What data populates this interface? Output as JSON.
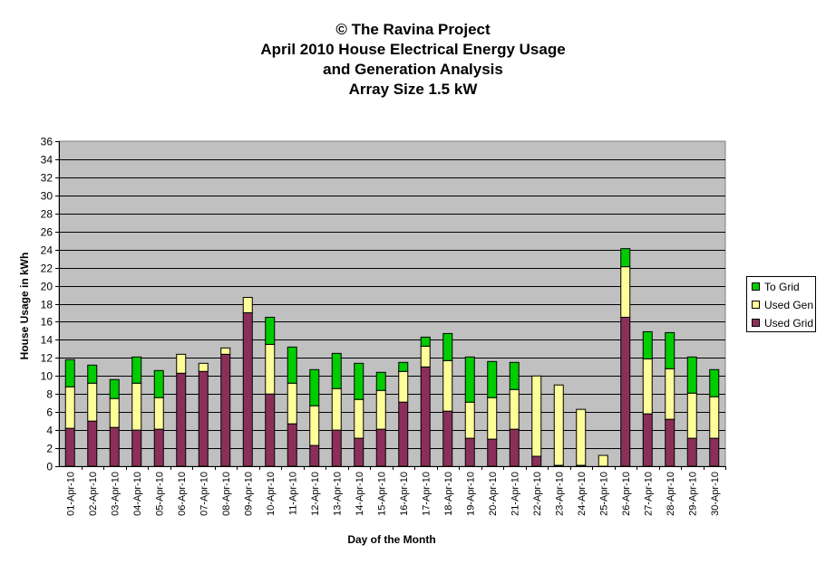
{
  "chart_data": {
    "type": "bar",
    "stacked": true,
    "title_lines": [
      "© The Ravina Project",
      "April 2010 House Electrical Energy Usage",
      "and Generation Analysis",
      "Array Size 1.5 kW"
    ],
    "xlabel": "Day of the Month",
    "ylabel": "House Usage in kWh",
    "ylim": [
      0,
      36
    ],
    "yticks": [
      0,
      2,
      4,
      6,
      8,
      10,
      12,
      14,
      16,
      18,
      20,
      22,
      24,
      26,
      28,
      30,
      32,
      34,
      36
    ],
    "grid": true,
    "legend_position": "right",
    "categories": [
      "01-Apr-10",
      "02-Apr-10",
      "03-Apr-10",
      "04-Apr-10",
      "05-Apr-10",
      "06-Apr-10",
      "07-Apr-10",
      "08-Apr-10",
      "09-Apr-10",
      "10-Apr-10",
      "11-Apr-10",
      "12-Apr-10",
      "13-Apr-10",
      "14-Apr-10",
      "15-Apr-10",
      "16-Apr-10",
      "17-Apr-10",
      "18-Apr-10",
      "19-Apr-10",
      "20-Apr-10",
      "21-Apr-10",
      "22-Apr-10",
      "23-Apr-10",
      "24-Apr-10",
      "25-Apr-10",
      "26-Apr-10",
      "27-Apr-10",
      "28-Apr-10",
      "29-Apr-10",
      "30-Apr-10"
    ],
    "series": [
      {
        "name": "Used Grid",
        "color": "#8b2f5a",
        "values": [
          4.2,
          5.0,
          4.3,
          4.0,
          4.1,
          10.3,
          10.5,
          12.4,
          17.0,
          8.0,
          4.7,
          2.3,
          4.0,
          3.1,
          4.1,
          7.1,
          11.0,
          6.1,
          3.1,
          3.0,
          4.1,
          1.1,
          0.1,
          0.1,
          0.0,
          16.5,
          5.8,
          5.2,
          3.1,
          3.1
        ]
      },
      {
        "name": "Used Gen",
        "color": "#ffff99",
        "values": [
          4.6,
          4.2,
          3.2,
          5.2,
          3.5,
          2.1,
          0.9,
          0.7,
          1.7,
          5.5,
          4.5,
          4.4,
          4.6,
          4.3,
          4.3,
          3.4,
          2.3,
          5.6,
          4.0,
          4.6,
          4.4,
          8.9,
          8.9,
          6.2,
          1.2,
          5.6,
          6.1,
          5.6,
          5.0,
          4.6
        ]
      },
      {
        "name": "To Grid",
        "color": "#00cc00",
        "values": [
          3.0,
          2.0,
          2.1,
          2.9,
          3.0,
          0.0,
          0.0,
          0.0,
          0.0,
          3.0,
          4.0,
          4.0,
          3.9,
          4.0,
          2.0,
          1.0,
          1.0,
          3.0,
          5.0,
          4.0,
          3.0,
          0.0,
          0.0,
          0.0,
          0.0,
          2.0,
          3.0,
          4.0,
          4.0,
          3.0
        ]
      }
    ]
  }
}
